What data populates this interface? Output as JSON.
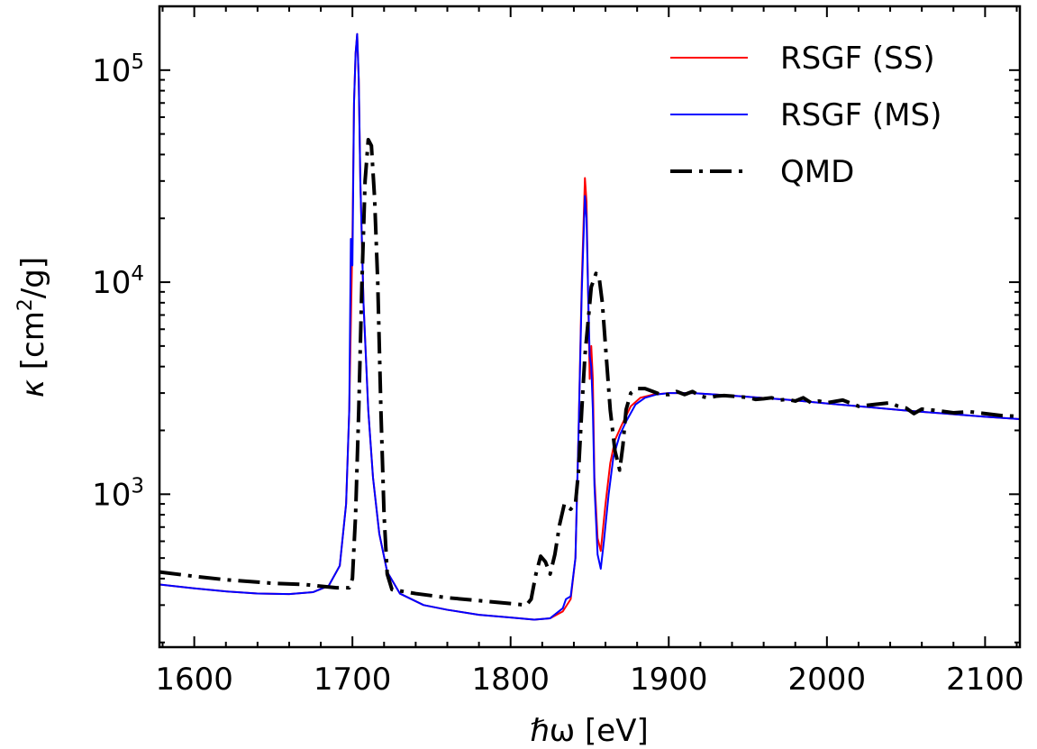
{
  "chart_data": {
    "type": "line",
    "title": "",
    "xlabel": "ℏω [eV]",
    "ylabel_symbol": "κ",
    "ylabel_unit_base": "[cm",
    "ylabel_unit_sup": "2",
    "ylabel_unit_rest": "/g]",
    "xlim": [
      1578,
      2122
    ],
    "ylim": [
      190,
      200000
    ],
    "yscale": "log",
    "grid": false,
    "legend_position": "top-right",
    "x_ticks": [
      {
        "value": 1600,
        "label": "1600"
      },
      {
        "value": 1700,
        "label": "1700"
      },
      {
        "value": 1800,
        "label": "1800"
      },
      {
        "value": 1900,
        "label": "1900"
      },
      {
        "value": 2000,
        "label": "2000"
      },
      {
        "value": 2100,
        "label": "2100"
      }
    ],
    "y_ticks": [
      {
        "value": 1000,
        "base": "10",
        "exp": "3"
      },
      {
        "value": 10000,
        "base": "10",
        "exp": "4"
      },
      {
        "value": 100000,
        "base": "10",
        "exp": "5"
      }
    ],
    "series": [
      {
        "name": "RSGF (SS)",
        "color": "#ff0000",
        "style": "solid",
        "points": [
          [
            1578,
            375
          ],
          [
            1600,
            360
          ],
          [
            1620,
            348
          ],
          [
            1640,
            340
          ],
          [
            1660,
            338
          ],
          [
            1675,
            345
          ],
          [
            1685,
            370
          ],
          [
            1692,
            460
          ],
          [
            1696,
            900
          ],
          [
            1698,
            2500
          ],
          [
            1700,
            16000
          ],
          [
            1701,
            70000
          ],
          [
            1702,
            120000
          ],
          [
            1703,
            148000
          ],
          [
            1704,
            90000
          ],
          [
            1705,
            30000
          ],
          [
            1707,
            8000
          ],
          [
            1710,
            2500
          ],
          [
            1713,
            1200
          ],
          [
            1717,
            650
          ],
          [
            1722,
            430
          ],
          [
            1730,
            340
          ],
          [
            1745,
            300
          ],
          [
            1760,
            285
          ],
          [
            1780,
            270
          ],
          [
            1800,
            262
          ],
          [
            1815,
            256
          ],
          [
            1825,
            260
          ],
          [
            1833,
            280
          ],
          [
            1838,
            320
          ],
          [
            1841,
            500
          ],
          [
            1843,
            2000
          ],
          [
            1845,
            10000
          ],
          [
            1847,
            31000
          ],
          [
            1848,
            24000
          ],
          [
            1849,
            9000
          ],
          [
            1850,
            3500
          ],
          [
            1851,
            5000
          ],
          [
            1852,
            3500
          ],
          [
            1853,
            1200
          ],
          [
            1855,
            620
          ],
          [
            1857,
            540
          ],
          [
            1860,
            900
          ],
          [
            1863,
            1400
          ],
          [
            1866,
            1800
          ],
          [
            1870,
            2100
          ],
          [
            1876,
            2600
          ],
          [
            1882,
            2850
          ],
          [
            1890,
            2950
          ],
          [
            1900,
            3000
          ],
          [
            1915,
            3000
          ],
          [
            1930,
            2950
          ],
          [
            1950,
            2880
          ],
          [
            1975,
            2790
          ],
          [
            2000,
            2680
          ],
          [
            2025,
            2580
          ],
          [
            2050,
            2480
          ],
          [
            2075,
            2400
          ],
          [
            2100,
            2320
          ],
          [
            2122,
            2260
          ]
        ]
      },
      {
        "name": "RSGF (MS)",
        "color": "#0000ff",
        "style": "solid",
        "points": [
          [
            1578,
            375
          ],
          [
            1600,
            360
          ],
          [
            1620,
            348
          ],
          [
            1640,
            340
          ],
          [
            1660,
            338
          ],
          [
            1675,
            345
          ],
          [
            1685,
            370
          ],
          [
            1692,
            460
          ],
          [
            1696,
            900
          ],
          [
            1698,
            2500
          ],
          [
            1699,
            16000
          ],
          [
            1700,
            12000
          ],
          [
            1701,
            70000
          ],
          [
            1702,
            120000
          ],
          [
            1703,
            148000
          ],
          [
            1704,
            90000
          ],
          [
            1705,
            30000
          ],
          [
            1707,
            8000
          ],
          [
            1710,
            2500
          ],
          [
            1713,
            1200
          ],
          [
            1717,
            650
          ],
          [
            1722,
            430
          ],
          [
            1730,
            340
          ],
          [
            1745,
            300
          ],
          [
            1760,
            285
          ],
          [
            1780,
            270
          ],
          [
            1800,
            262
          ],
          [
            1815,
            256
          ],
          [
            1825,
            260
          ],
          [
            1833,
            290
          ],
          [
            1835,
            320
          ],
          [
            1838,
            330
          ],
          [
            1841,
            500
          ],
          [
            1843,
            2000
          ],
          [
            1845,
            9000
          ],
          [
            1847,
            25500
          ],
          [
            1848,
            20000
          ],
          [
            1849,
            9000
          ],
          [
            1850,
            4500
          ],
          [
            1851,
            4000
          ],
          [
            1852,
            2500
          ],
          [
            1853,
            1100
          ],
          [
            1855,
            520
          ],
          [
            1857,
            445
          ],
          [
            1859,
            600
          ],
          [
            1862,
            1000
          ],
          [
            1865,
            1500
          ],
          [
            1869,
            1900
          ],
          [
            1873,
            2200
          ],
          [
            1879,
            2650
          ],
          [
            1885,
            2850
          ],
          [
            1892,
            2950
          ],
          [
            1900,
            3000
          ],
          [
            1915,
            3000
          ],
          [
            1930,
            2950
          ],
          [
            1950,
            2880
          ],
          [
            1975,
            2790
          ],
          [
            2000,
            2680
          ],
          [
            2025,
            2580
          ],
          [
            2050,
            2480
          ],
          [
            2075,
            2400
          ],
          [
            2100,
            2320
          ],
          [
            2122,
            2260
          ]
        ]
      },
      {
        "name": "QMD",
        "color": "#000000",
        "style": "dashdot",
        "points": [
          [
            1578,
            430
          ],
          [
            1600,
            410
          ],
          [
            1620,
            395
          ],
          [
            1650,
            380
          ],
          [
            1670,
            375
          ],
          [
            1690,
            362
          ],
          [
            1698,
            362
          ],
          [
            1700,
            400
          ],
          [
            1702,
            800
          ],
          [
            1704,
            2500
          ],
          [
            1706,
            10000
          ],
          [
            1708,
            30000
          ],
          [
            1710,
            47000
          ],
          [
            1712,
            44000
          ],
          [
            1714,
            25000
          ],
          [
            1716,
            10000
          ],
          [
            1718,
            2500
          ],
          [
            1720,
            800
          ],
          [
            1722,
            420
          ],
          [
            1725,
            355
          ],
          [
            1740,
            340
          ],
          [
            1760,
            325
          ],
          [
            1780,
            315
          ],
          [
            1800,
            305
          ],
          [
            1810,
            300
          ],
          [
            1813,
            320
          ],
          [
            1816,
            420
          ],
          [
            1819,
            510
          ],
          [
            1822,
            480
          ],
          [
            1825,
            420
          ],
          [
            1828,
            520
          ],
          [
            1831,
            720
          ],
          [
            1834,
            900
          ],
          [
            1838,
            850
          ],
          [
            1841,
            900
          ],
          [
            1843,
            1300
          ],
          [
            1845,
            2500
          ],
          [
            1847,
            4500
          ],
          [
            1849,
            6500
          ],
          [
            1851,
            9500
          ],
          [
            1854,
            11000
          ],
          [
            1856,
            10500
          ],
          [
            1858,
            8000
          ],
          [
            1860,
            5000
          ],
          [
            1863,
            2500
          ],
          [
            1866,
            1600
          ],
          [
            1869,
            1300
          ],
          [
            1871,
            1700
          ],
          [
            1873,
            2500
          ],
          [
            1876,
            3000
          ],
          [
            1880,
            3150
          ],
          [
            1885,
            3150
          ],
          [
            1890,
            3050
          ],
          [
            1895,
            2950
          ],
          [
            1900,
            2950
          ],
          [
            1905,
            3050
          ],
          [
            1910,
            2950
          ],
          [
            1915,
            3050
          ],
          [
            1920,
            2900
          ],
          [
            1925,
            2850
          ],
          [
            1930,
            2900
          ],
          [
            1935,
            2920
          ],
          [
            1940,
            2900
          ],
          [
            1945,
            2880
          ],
          [
            1950,
            2860
          ],
          [
            1955,
            2800
          ],
          [
            1960,
            2820
          ],
          [
            1965,
            2850
          ],
          [
            1970,
            2780
          ],
          [
            1975,
            2800
          ],
          [
            1980,
            2750
          ],
          [
            1985,
            2850
          ],
          [
            1990,
            2700
          ],
          [
            1995,
            2750
          ],
          [
            2000,
            2700
          ],
          [
            2010,
            2780
          ],
          [
            2020,
            2600
          ],
          [
            2030,
            2650
          ],
          [
            2040,
            2700
          ],
          [
            2045,
            2600
          ],
          [
            2050,
            2550
          ],
          [
            2055,
            2400
          ],
          [
            2060,
            2520
          ],
          [
            2070,
            2480
          ],
          [
            2080,
            2420
          ],
          [
            2090,
            2450
          ],
          [
            2100,
            2400
          ],
          [
            2110,
            2350
          ],
          [
            2122,
            2330
          ]
        ]
      }
    ]
  }
}
